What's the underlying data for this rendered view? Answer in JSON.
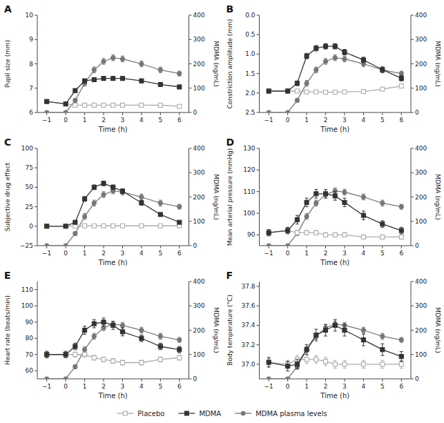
{
  "chart_data": [
    {
      "type": "line",
      "title": "A",
      "xlabel": "Time (h)",
      "ylabel": "Pupil size (mm)",
      "y2label": "MDMA (ng/mL)",
      "x": [
        -1,
        0,
        0.5,
        1,
        1.5,
        2,
        2.5,
        3,
        4,
        5,
        6
      ],
      "xlim": [
        -1.5,
        6.5
      ],
      "xticks": [
        {
          "value": -1,
          "label": "−1"
        },
        0,
        1,
        2,
        3,
        4,
        5,
        6
      ],
      "ylim": [
        6,
        10
      ],
      "yticks": [
        6,
        7,
        8,
        9,
        10
      ],
      "y2lim": [
        0,
        400
      ],
      "y2ticks": [
        0,
        100,
        200,
        300,
        400
      ],
      "grid": false,
      "legend": "bottom",
      "series": [
        {
          "name": "Placebo",
          "color": "#aaaaaa",
          "marker": "open-square",
          "values": [
            6.45,
            6.35,
            6.3,
            6.3,
            6.3,
            6.3,
            6.3,
            6.3,
            6.3,
            6.3,
            6.25
          ],
          "errors": [
            0.05,
            0.05,
            0.05,
            0.05,
            0.05,
            0.05,
            0.05,
            0.05,
            0.05,
            0.05,
            0.05
          ]
        },
        {
          "name": "MDMA",
          "color": "#333333",
          "marker": "square",
          "values": [
            6.45,
            6.35,
            6.9,
            7.3,
            7.35,
            7.4,
            7.4,
            7.4,
            7.3,
            7.15,
            7.05
          ],
          "errors": [
            0.07,
            0.07,
            0.08,
            0.08,
            0.08,
            0.08,
            0.08,
            0.08,
            0.08,
            0.08,
            0.08
          ]
        },
        {
          "name": "MDMA plasma levels",
          "color": "#777777",
          "marker": "circle",
          "axis": "y2",
          "values": [
            0,
            0,
            50,
            120,
            175,
            210,
            225,
            220,
            200,
            175,
            160
          ],
          "errors": [
            0,
            0,
            8,
            12,
            12,
            12,
            12,
            12,
            12,
            12,
            10
          ]
        }
      ]
    },
    {
      "type": "line",
      "title": "B",
      "xlabel": "Time (h)",
      "ylabel": "Constriction amplitude (mm)",
      "y2label": "MDMA (ng/mL)",
      "x": [
        -1,
        0,
        0.5,
        1,
        1.5,
        2,
        2.5,
        3,
        4,
        5,
        6
      ],
      "xlim": [
        -1.5,
        6.5
      ],
      "xticks": [
        {
          "value": -1,
          "label": "−1"
        },
        0,
        1,
        2,
        3,
        4,
        5,
        6
      ],
      "ylim": [
        2.5,
        0.0
      ],
      "yticks": [
        {
          "value": 0.0,
          "label": "0.0"
        },
        0.5,
        {
          "value": 1.0,
          "label": "1.0"
        },
        1.5,
        {
          "value": 2.0,
          "label": "2.0"
        },
        2.5
      ],
      "y2lim": [
        0,
        400
      ],
      "y2ticks": [
        0,
        100,
        200,
        300,
        400
      ],
      "grid": false,
      "series": [
        {
          "name": "Placebo",
          "color": "#aaaaaa",
          "marker": "open-square",
          "values": [
            1.95,
            1.95,
            1.95,
            1.97,
            1.97,
            1.98,
            1.98,
            1.97,
            1.96,
            1.9,
            1.82
          ],
          "errors": [
            0.04,
            0.04,
            0.04,
            0.04,
            0.04,
            0.04,
            0.04,
            0.04,
            0.04,
            0.04,
            0.04
          ]
        },
        {
          "name": "MDMA",
          "color": "#333333",
          "marker": "square",
          "values": [
            1.95,
            1.95,
            1.75,
            1.05,
            0.85,
            0.8,
            0.8,
            0.95,
            1.15,
            1.4,
            1.62
          ],
          "errors": [
            0.05,
            0.05,
            0.06,
            0.07,
            0.07,
            0.07,
            0.07,
            0.07,
            0.07,
            0.07,
            0.07
          ]
        },
        {
          "name": "MDMA plasma levels",
          "color": "#777777",
          "marker": "circle",
          "axis": "y2",
          "values": [
            0,
            0,
            50,
            120,
            175,
            210,
            225,
            220,
            200,
            175,
            160
          ],
          "errors": [
            0,
            0,
            8,
            12,
            12,
            12,
            12,
            12,
            12,
            12,
            10
          ]
        }
      ]
    },
    {
      "type": "line",
      "title": "C",
      "xlabel": "Time (h)",
      "ylabel": "Subjective drug effect",
      "y2label": "MDMA (ng/mL)",
      "x": [
        -1,
        0,
        0.5,
        1,
        1.5,
        2,
        2.5,
        3,
        4,
        5,
        6
      ],
      "xlim": [
        -1.5,
        6.5
      ],
      "xticks": [
        {
          "value": -1,
          "label": "−1"
        },
        0,
        1,
        2,
        3,
        4,
        5,
        6
      ],
      "ylim": [
        -25,
        100
      ],
      "yticks": [
        {
          "value": -25,
          "label": "−25"
        },
        0,
        25,
        50,
        75,
        100
      ],
      "y2lim": [
        0,
        400
      ],
      "y2ticks": [
        0,
        100,
        200,
        300,
        400
      ],
      "grid": false,
      "series": [
        {
          "name": "Placebo",
          "color": "#aaaaaa",
          "marker": "open-square",
          "values": [
            0,
            0,
            0,
            0.5,
            0.5,
            0.5,
            0.5,
            0.5,
            0.5,
            0.5,
            0.5
          ],
          "errors": [
            0.2,
            0.2,
            0.2,
            0.2,
            0.2,
            0.2,
            0.2,
            0.2,
            0.2,
            0.2,
            0.2
          ]
        },
        {
          "name": "MDMA",
          "color": "#333333",
          "marker": "square",
          "values": [
            0,
            0,
            5,
            35,
            50,
            55,
            50,
            45,
            30,
            15,
            5
          ],
          "errors": [
            0.5,
            0.5,
            2,
            3,
            3,
            3,
            3,
            3,
            3,
            2,
            1
          ]
        },
        {
          "name": "MDMA plasma levels",
          "color": "#777777",
          "marker": "circle",
          "axis": "y2",
          "values": [
            0,
            0,
            50,
            120,
            175,
            210,
            225,
            220,
            200,
            175,
            160
          ],
          "errors": [
            0,
            0,
            8,
            12,
            12,
            12,
            12,
            12,
            12,
            12,
            10
          ]
        }
      ]
    },
    {
      "type": "line",
      "title": "D",
      "xlabel": "Time (h)",
      "ylabel": "Mean arterial pressure (mmHg)",
      "y2label": "MDMA (ng/mL)",
      "x": [
        -1,
        0,
        0.5,
        1,
        1.5,
        2,
        2.5,
        3,
        4,
        5,
        6
      ],
      "xlim": [
        -1.5,
        6.5
      ],
      "xticks": [
        {
          "value": -1,
          "label": "−1"
        },
        0,
        1,
        2,
        3,
        4,
        5,
        6
      ],
      "ylim": [
        85,
        130
      ],
      "yticks": [
        90,
        100,
        110,
        120,
        130
      ],
      "y2lim": [
        0,
        400
      ],
      "y2ticks": [
        0,
        100,
        200,
        300,
        400
      ],
      "grid": false,
      "series": [
        {
          "name": "Placebo",
          "color": "#aaaaaa",
          "marker": "open-square",
          "values": [
            91,
            92,
            91,
            91,
            91,
            90,
            90,
            90,
            89,
            89,
            89
          ],
          "errors": [
            1,
            1,
            1,
            1,
            1,
            1,
            1,
            1,
            1,
            1,
            1
          ]
        },
        {
          "name": "MDMA",
          "color": "#333333",
          "marker": "square",
          "values": [
            91,
            92,
            97,
            105,
            109,
            109,
            108,
            105,
            99,
            95,
            92
          ],
          "errors": [
            1.5,
            1.5,
            2,
            2,
            2,
            2,
            2,
            2,
            2,
            1.5,
            1.5
          ]
        },
        {
          "name": "MDMA plasma levels",
          "color": "#777777",
          "marker": "circle",
          "axis": "y2",
          "values": [
            0,
            0,
            50,
            120,
            175,
            210,
            225,
            220,
            200,
            175,
            160
          ],
          "errors": [
            0,
            0,
            8,
            12,
            12,
            12,
            12,
            12,
            12,
            12,
            10
          ]
        }
      ]
    },
    {
      "type": "line",
      "title": "E",
      "xlabel": "Time (h)",
      "ylabel": "Heart rate (beats/min)",
      "y2label": "MDMA (ng/mL)",
      "x": [
        -1,
        0,
        0.5,
        1,
        1.5,
        2,
        2.5,
        3,
        4,
        5,
        6
      ],
      "xlim": [
        -1.5,
        6.5
      ],
      "xticks": [
        {
          "value": -1,
          "label": "−1"
        },
        0,
        1,
        2,
        3,
        4,
        5,
        6
      ],
      "ylim": [
        55,
        115
      ],
      "yticks": [
        60,
        70,
        80,
        90,
        100,
        110
      ],
      "y2lim": [
        0,
        400
      ],
      "y2ticks": [
        0,
        100,
        200,
        300,
        400
      ],
      "grid": false,
      "series": [
        {
          "name": "Placebo",
          "color": "#aaaaaa",
          "marker": "open-square",
          "values": [
            70,
            70,
            70,
            70,
            68,
            67,
            66,
            65,
            65,
            67,
            68
          ],
          "errors": [
            1.5,
            1.5,
            1.5,
            1.5,
            1.5,
            1.5,
            1.5,
            1.5,
            1.5,
            1.5,
            1.5
          ]
        },
        {
          "name": "MDMA",
          "color": "#333333",
          "marker": "square",
          "values": [
            70,
            70,
            75,
            85,
            89,
            90,
            88,
            84,
            80,
            75,
            73
          ],
          "errors": [
            2,
            2,
            2,
            2.5,
            2.5,
            2.5,
            2.5,
            2.5,
            2,
            2,
            2
          ]
        },
        {
          "name": "MDMA plasma levels",
          "color": "#777777",
          "marker": "circle",
          "axis": "y2",
          "values": [
            0,
            0,
            50,
            120,
            175,
            210,
            225,
            220,
            200,
            175,
            160
          ],
          "errors": [
            0,
            0,
            8,
            12,
            12,
            12,
            12,
            12,
            12,
            12,
            10
          ]
        }
      ]
    },
    {
      "type": "line",
      "title": "F",
      "xlabel": "Time (h)",
      "ylabel": "Body temperature (°C)",
      "y2label": "MDMA (ng/mL)",
      "x": [
        -1,
        0,
        0.5,
        1,
        1.5,
        2,
        2.5,
        3,
        4,
        5,
        6
      ],
      "xlim": [
        -1.5,
        6.5
      ],
      "xticks": [
        {
          "value": -1,
          "label": "−1"
        },
        0,
        1,
        2,
        3,
        4,
        5,
        6
      ],
      "ylim": [
        36.85,
        37.85
      ],
      "yticks": [
        {
          "value": 37.0,
          "label": "37.0"
        },
        37.2,
        37.4,
        37.6,
        37.8
      ],
      "y2lim": [
        0,
        400
      ],
      "y2ticks": [
        0,
        100,
        200,
        300,
        400
      ],
      "grid": false,
      "series": [
        {
          "name": "Placebo",
          "color": "#aaaaaa",
          "marker": "open-square",
          "values": [
            37.02,
            37.0,
            37.05,
            37.05,
            37.05,
            37.03,
            37.0,
            37.0,
            37.0,
            37.0,
            37.0
          ],
          "errors": [
            0.04,
            0.04,
            0.04,
            0.04,
            0.04,
            0.04,
            0.04,
            0.04,
            0.04,
            0.04,
            0.04
          ]
        },
        {
          "name": "MDMA",
          "color": "#333333",
          "marker": "square",
          "values": [
            37.02,
            36.98,
            37.0,
            37.15,
            37.3,
            37.35,
            37.4,
            37.35,
            37.25,
            37.15,
            37.08
          ],
          "errors": [
            0.05,
            0.05,
            0.05,
            0.05,
            0.06,
            0.06,
            0.06,
            0.06,
            0.06,
            0.06,
            0.05
          ]
        },
        {
          "name": "MDMA plasma levels",
          "color": "#777777",
          "marker": "circle",
          "axis": "y2",
          "values": [
            0,
            0,
            50,
            120,
            175,
            210,
            225,
            220,
            200,
            175,
            160
          ],
          "errors": [
            0,
            0,
            8,
            12,
            12,
            12,
            12,
            12,
            12,
            12,
            10
          ]
        }
      ]
    }
  ]
}
